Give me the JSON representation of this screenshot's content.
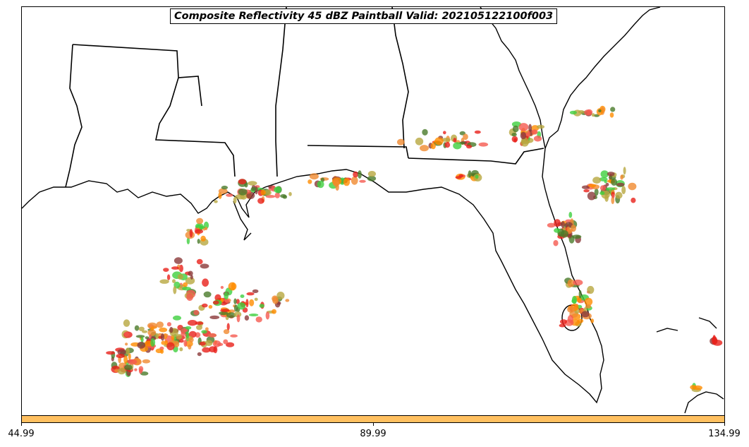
{
  "title": "Composite Reflectivity 45 dBZ Paintball Valid: 202105122100f003",
  "colorbar": {
    "color": "#ffc060",
    "ticks": [
      "44.99",
      "89.99",
      "134.99"
    ]
  },
  "paintball_colors": [
    "#e8201a",
    "#f08a30",
    "#ff8c00",
    "#3ecf3e",
    "#4a7a2a",
    "#8b3a3a",
    "#b8a840",
    "#f55a50"
  ],
  "map_features": [
    "state-borders",
    "coastline",
    "florida-peninsula",
    "gulf-of-mexico"
  ]
}
